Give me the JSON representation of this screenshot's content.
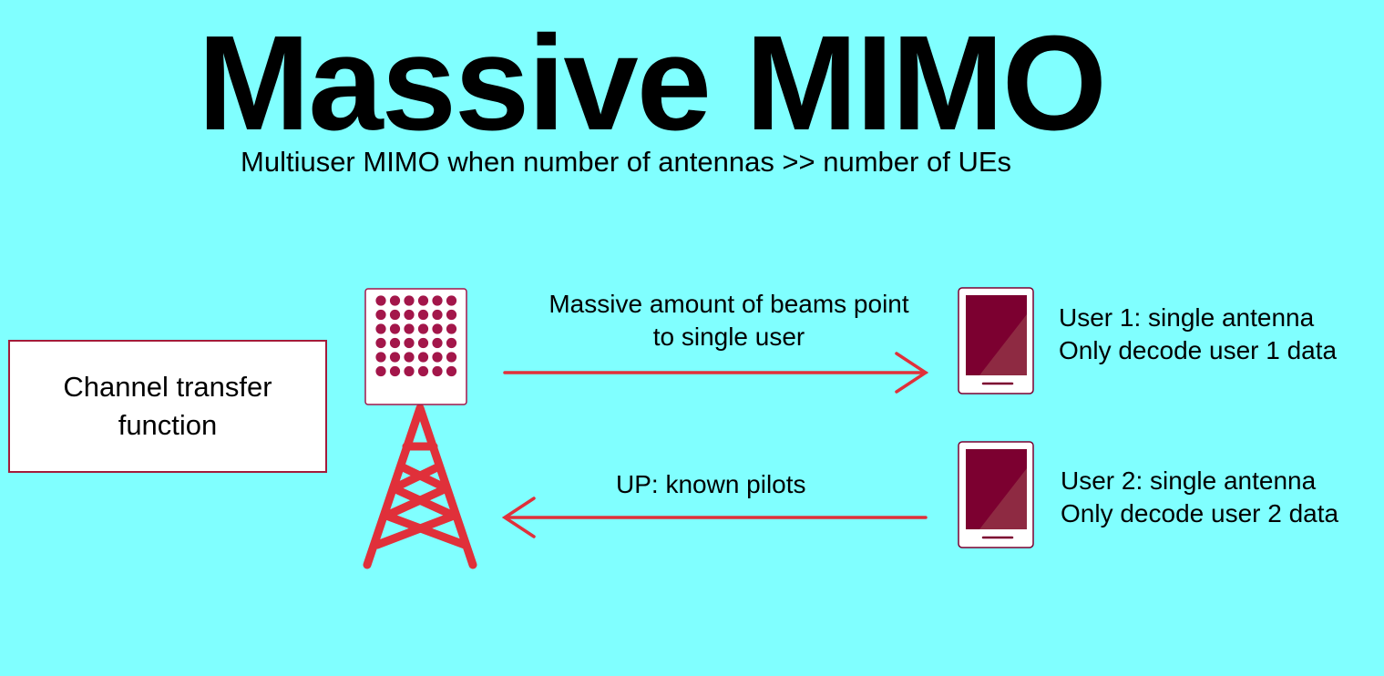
{
  "title": "Massive MIMO",
  "subtitle": "Multiuser MIMO when number of antennas >> number of UEs",
  "channel_box": {
    "label": "Channel transfer function"
  },
  "downlink": {
    "label": "Massive amount of beams point to single user"
  },
  "uplink": {
    "label": "UP: known pilots"
  },
  "users": [
    {
      "line1": "User 1: single antenna",
      "line2": "Only decode user 1 data"
    },
    {
      "line1": "User 2: single antenna",
      "line2": "Only decode user 2 data"
    }
  ],
  "colors": {
    "background": "#80ffff",
    "accent": "#e0303a",
    "antenna_dot": "#a3164a",
    "device_screen": "#7c0030"
  },
  "antenna_array": {
    "rows": 6,
    "columns": 6
  }
}
